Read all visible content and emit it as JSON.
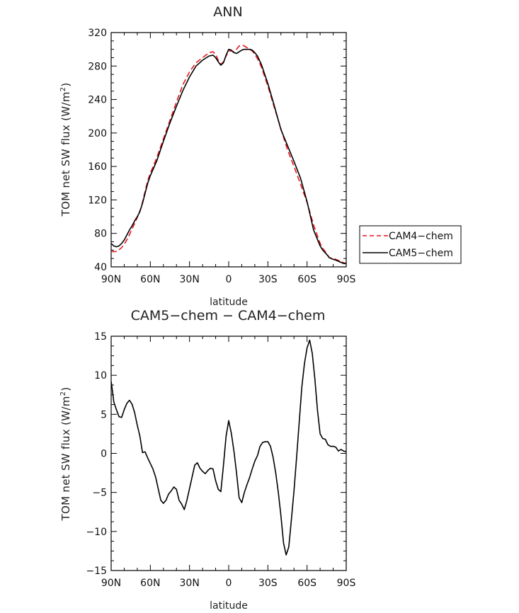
{
  "chart_data": [
    {
      "type": "line",
      "title": "ANN",
      "xlabel": "latitude",
      "ylabel": "TOM net SW flux (W/m",
      "ylabel_sup": "2",
      "ylabel_close": ")",
      "xlim": [
        90,
        -90
      ],
      "ylim": [
        40,
        320
      ],
      "x_ticks": [
        90,
        60,
        30,
        0,
        -30,
        -60,
        -90
      ],
      "x_tick_labels": [
        "90N",
        "60N",
        "30N",
        "0",
        "30S",
        "60S",
        "90S"
      ],
      "y_ticks": [
        40,
        80,
        120,
        160,
        200,
        240,
        280,
        320
      ],
      "y_tick_labels": [
        "40",
        "80",
        "120",
        "160",
        "200",
        "240",
        "280",
        "320"
      ],
      "legend": "outside-right",
      "series": [
        {
          "name": "CAM4−chem",
          "color": "#e8141c",
          "dash": "dashed",
          "x": [
            90,
            88,
            85,
            82,
            80,
            77,
            75,
            72,
            70,
            67,
            65,
            62,
            60,
            57,
            55,
            50,
            45,
            40,
            35,
            30,
            25,
            20,
            15,
            12,
            10,
            8,
            6,
            4,
            2,
            0,
            -2,
            -4,
            -6,
            -8,
            -10,
            -12,
            -14,
            -16,
            -18,
            -20,
            -22,
            -25,
            -30,
            -35,
            -40,
            -45,
            -50,
            -55,
            -60,
            -65,
            -70,
            -72,
            -75,
            -77,
            -80,
            -82,
            -85,
            -88,
            -90
          ],
          "y": [
            59,
            58,
            59,
            63,
            67,
            75,
            82,
            92,
            99,
            111,
            124,
            143,
            152,
            163,
            171,
            193,
            215,
            237,
            258,
            273,
            284,
            290,
            296,
            297,
            294,
            287,
            282,
            285,
            292,
            298,
            298,
            297,
            300,
            304,
            305,
            304,
            302,
            300,
            298,
            294,
            289,
            279,
            256,
            230,
            205,
            180,
            160,
            139,
            117,
            90,
            68,
            62,
            56,
            51,
            50,
            49,
            47,
            45,
            44
          ]
        },
        {
          "name": "CAM5−chem",
          "color": "#000000",
          "dash": "solid",
          "x": [
            90,
            88,
            86,
            84,
            82,
            80,
            78,
            76,
            74,
            72,
            70,
            68,
            66,
            64,
            62,
            60,
            55,
            50,
            45,
            40,
            35,
            30,
            25,
            20,
            15,
            12,
            10,
            8,
            6,
            4,
            2,
            0,
            -2,
            -4,
            -6,
            -8,
            -10,
            -12,
            -14,
            -16,
            -18,
            -20,
            -22,
            -25,
            -30,
            -35,
            -40,
            -45,
            -50,
            -55,
            -60,
            -65,
            -70,
            -72,
            -75,
            -77,
            -80,
            -82,
            -85,
            -88,
            -90
          ],
          "y": [
            68,
            65,
            64,
            65,
            68,
            72,
            78,
            84,
            89,
            95,
            100,
            106,
            116,
            128,
            140,
            149,
            167,
            190,
            212,
            232,
            251,
            267,
            280,
            287,
            292,
            293,
            290,
            285,
            281,
            284,
            293,
            300,
            299,
            296,
            295,
            297,
            299,
            300,
            300,
            300,
            299,
            296,
            292,
            282,
            259,
            232,
            204,
            185,
            166,
            146,
            118,
            84,
            65,
            60,
            55,
            51,
            49,
            48,
            46,
            44,
            44
          ]
        }
      ]
    },
    {
      "type": "line",
      "title": "CAM5−chem − CAM4−chem",
      "xlabel": "latitude",
      "ylabel": "TOM net SW flux (W/m",
      "ylabel_sup": "2",
      "ylabel_close": ")",
      "xlim": [
        90,
        -90
      ],
      "ylim": [
        -15,
        15
      ],
      "x_ticks": [
        90,
        60,
        30,
        0,
        -30,
        -60,
        -90
      ],
      "x_tick_labels": [
        "90N",
        "60N",
        "30N",
        "0",
        "30S",
        "60S",
        "90S"
      ],
      "y_ticks": [
        -15,
        -10,
        -5,
        0,
        5,
        10,
        15
      ],
      "y_tick_labels": [
        "−15",
        "−10",
        "−5",
        "0",
        "5",
        "10",
        "15"
      ],
      "series": [
        {
          "color": "#000000",
          "dash": "solid",
          "x": [
            90,
            89,
            88,
            86,
            84,
            82,
            80,
            78,
            76,
            74,
            72,
            70,
            69,
            68,
            66,
            64,
            62,
            60,
            58,
            56,
            54,
            52,
            50,
            48,
            46,
            44,
            42,
            40,
            38,
            36,
            34,
            32,
            30,
            28,
            26,
            24,
            22,
            20,
            18,
            16,
            14,
            12,
            10,
            8,
            6,
            4,
            2,
            0,
            -2,
            -4,
            -6,
            -8,
            -10,
            -12,
            -14,
            -16,
            -18,
            -20,
            -22,
            -24,
            -26,
            -28,
            -30,
            -32,
            -34,
            -36,
            -38,
            -40,
            -42,
            -44,
            -46,
            -48,
            -50,
            -52,
            -54,
            -56,
            -58,
            -60,
            -62,
            -64,
            -66,
            -68,
            -70,
            -72,
            -74,
            -76,
            -78,
            -80,
            -82,
            -84,
            -86,
            -88,
            -90
          ],
          "y": [
            9.2,
            8.0,
            6.6,
            5.6,
            4.7,
            4.6,
            5.6,
            6.4,
            6.8,
            6.3,
            5.2,
            3.6,
            2.9,
            2.2,
            0.1,
            0.2,
            -0.6,
            -1.3,
            -2.0,
            -3.0,
            -4.5,
            -6.0,
            -6.4,
            -6.0,
            -5.2,
            -4.8,
            -4.3,
            -4.6,
            -6.0,
            -6.5,
            -7.2,
            -6.0,
            -4.5,
            -3.0,
            -1.5,
            -1.2,
            -1.9,
            -2.3,
            -2.6,
            -2.2,
            -1.9,
            -2.0,
            -3.5,
            -4.6,
            -4.9,
            -1.5,
            2.2,
            4.2,
            2.6,
            0.3,
            -2.5,
            -5.7,
            -6.3,
            -5.0,
            -4.0,
            -3.1,
            -2.0,
            -1.0,
            -0.3,
            0.9,
            1.4,
            1.5,
            1.5,
            0.9,
            -0.5,
            -2.5,
            -5.0,
            -8.0,
            -11.5,
            -13.0,
            -12.0,
            -8.5,
            -4.8,
            -0.5,
            4.0,
            8.5,
            11.5,
            13.5,
            14.5,
            12.8,
            9.5,
            5.5,
            2.5,
            1.9,
            1.8,
            1.1,
            0.9,
            0.9,
            0.8,
            0.3,
            0.5,
            0.3,
            0.2
          ]
        }
      ]
    }
  ]
}
